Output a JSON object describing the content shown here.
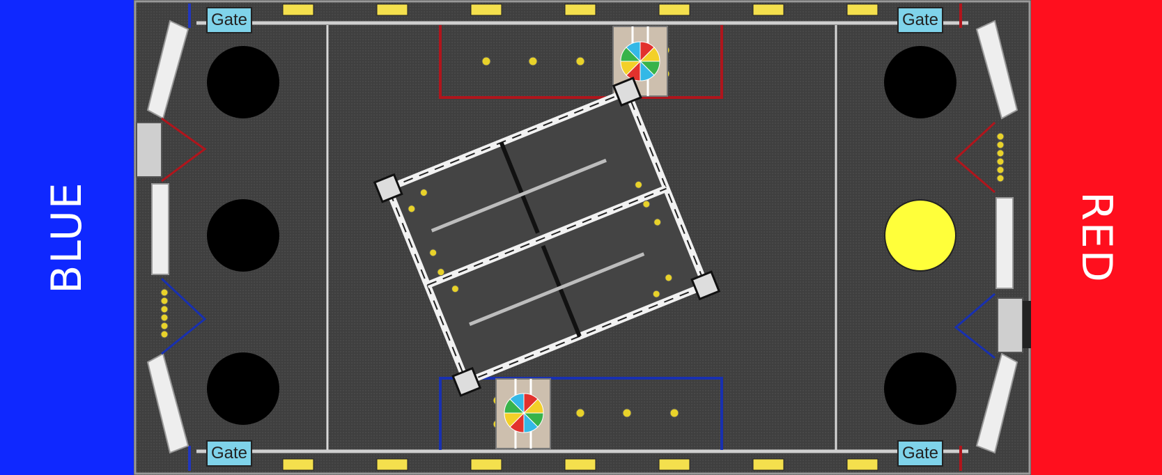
{
  "sides": {
    "blue": {
      "label": "BLUE",
      "color": "#0f28ff"
    },
    "red": {
      "label": "RED",
      "color": "#ff0f1e"
    }
  },
  "gates": {
    "top_left": "Gate",
    "top_right": "Gate",
    "bottom_left": "Gate",
    "bottom_right": "Gate"
  },
  "goals": [
    {
      "id": "blue-top",
      "state": "black"
    },
    {
      "id": "blue-middle",
      "state": "black"
    },
    {
      "id": "blue-bottom",
      "state": "black"
    },
    {
      "id": "red-top",
      "state": "black"
    },
    {
      "id": "red-middle",
      "state": "yellow"
    },
    {
      "id": "red-bottom",
      "state": "black"
    }
  ],
  "colors": {
    "field": "#3f3f3f",
    "gate": "#7fd3ea",
    "goal_black": "#000000",
    "goal_yellow": "#ffff3a",
    "zone_red": "#b0151c",
    "zone_blue": "#1830b0",
    "ball": "#e8d22a"
  },
  "icons": [
    "spinner-wheel-icon",
    "robot-frame-icon",
    "ball-icon"
  ]
}
